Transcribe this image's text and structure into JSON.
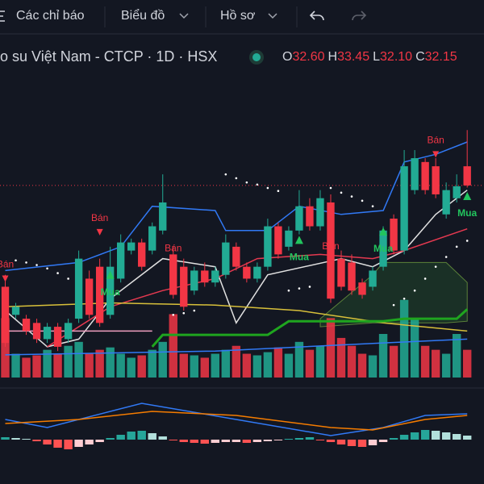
{
  "toolbar": {
    "items": [
      "Các chỉ báo",
      "Biểu đồ",
      "Hồ sơ"
    ]
  },
  "header": {
    "title": "o su Việt Nam - CTCP · 1D · HSX",
    "ohlc": [
      {
        "key": "O",
        "value": "32.60"
      },
      {
        "key": "H",
        "value": "33.45"
      },
      {
        "key": "L",
        "value": "32.10"
      },
      {
        "key": "C",
        "value": "32.15"
      }
    ]
  },
  "chart_data": {
    "type": "candlestick",
    "up_color": "#22ab94",
    "down_color": "#f23645",
    "xlim": [
      -0.5,
      45.6
    ],
    "ylim": [
      27.6,
      34.8
    ],
    "open": [
      29.77,
      29.11,
      29.02,
      28.92,
      28.54,
      28.83,
      28.54,
      29.02,
      29.96,
      30.24,
      29.11,
      29.96,
      30.62,
      30.81,
      30.62,
      31.09,
      30.53,
      30.24,
      29.68,
      30.15,
      29.87,
      30.05,
      30.71,
      30.24,
      29.96,
      30.24,
      31.19,
      30.71,
      31.09,
      31.66,
      31.19,
      31.75,
      30.43,
      30.34,
      29.87,
      29.77,
      30.24,
      31.37,
      30.62,
      32.04,
      32.7,
      32.6,
      31.47,
      31.85,
      32.6
    ],
    "high": [
      30.05,
      29.39,
      29.11,
      29.02,
      28.92,
      28.92,
      29.02,
      30.62,
      30.15,
      30.43,
      30.71,
      31.0,
      30.9,
      30.9,
      31.28,
      32.41,
      30.71,
      30.43,
      30.24,
      30.34,
      30.24,
      31.0,
      30.81,
      30.34,
      30.34,
      31.37,
      31.28,
      31.19,
      32.04,
      31.85,
      32.04,
      31.94,
      30.62,
      30.53,
      29.96,
      30.24,
      31.19,
      31.47,
      32.98,
      32.98,
      32.79,
      32.79,
      32.22,
      32.41,
      33.45
    ],
    "low": [
      28.36,
      29.02,
      28.64,
      28.45,
      28.45,
      28.26,
      28.45,
      28.92,
      29.02,
      28.83,
      29.02,
      29.87,
      30.53,
      30.15,
      30.53,
      31.0,
      29.49,
      29.21,
      29.58,
      29.77,
      29.77,
      29.96,
      30.15,
      29.87,
      29.87,
      30.15,
      30.43,
      30.62,
      31.0,
      31.09,
      31.09,
      29.39,
      29.68,
      29.58,
      29.49,
      29.68,
      30.15,
      30.53,
      30.53,
      31.94,
      31.94,
      31.85,
      31.37,
      31.75,
      32.1
    ],
    "close": [
      28.45,
      29.3,
      28.73,
      28.54,
      28.83,
      28.36,
      28.92,
      30.43,
      29.11,
      28.92,
      30.24,
      30.81,
      30.81,
      30.24,
      31.19,
      31.75,
      29.58,
      29.3,
      30.15,
      29.87,
      30.15,
      30.81,
      30.24,
      29.96,
      30.24,
      31.19,
      30.53,
      31.09,
      31.66,
      31.19,
      31.85,
      29.49,
      29.77,
      29.68,
      29.58,
      30.15,
      31.09,
      30.62,
      32.6,
      32.79,
      32.04,
      31.94,
      32.04,
      32.13,
      32.15
    ],
    "volume": {
      "lim": [
        0,
        110
      ],
      "values": [
        75,
        30,
        25,
        28,
        35,
        30,
        40,
        45,
        30,
        35,
        38,
        30,
        25,
        28,
        35,
        45,
        80,
        30,
        28,
        25,
        30,
        35,
        40,
        30,
        28,
        32,
        38,
        30,
        45,
        35,
        40,
        75,
        50,
        40,
        30,
        28,
        55,
        40,
        98,
        75,
        40,
        35,
        30,
        55,
        35
      ]
    },
    "cloud": {
      "color": "#2e7d32",
      "x": [
        30,
        35,
        36,
        42,
        44
      ],
      "upper": [
        29.02,
        30.05,
        30.34,
        30.34,
        29.87
      ],
      "lower": [
        28.83,
        28.92,
        28.92,
        28.92,
        28.96
      ]
    },
    "overlays": [
      {
        "color": "#3179f5",
        "width": 1.5,
        "x": [
          0,
          7,
          11,
          14,
          20,
          21,
          25,
          28,
          32,
          36,
          38,
          41,
          44
        ],
        "values": [
          30.15,
          30.34,
          30.71,
          31.66,
          31.56,
          31.09,
          31.09,
          31.66,
          31.47,
          31.56,
          32.7,
          32.88,
          33.17
        ]
      },
      {
        "color": "#3179f5",
        "width": 1.5,
        "x": [
          0,
          20,
          36,
          44
        ],
        "values": [
          28.17,
          28.26,
          28.45,
          28.54
        ]
      },
      {
        "color": "#e0e0e0",
        "width": 1.5,
        "x": [
          0,
          4,
          7,
          10,
          15,
          20,
          22,
          25,
          32,
          35,
          38,
          41,
          44
        ],
        "values": [
          29.21,
          28.36,
          28.54,
          29.49,
          30.43,
          30.24,
          28.92,
          30.05,
          30.43,
          30.24,
          30.62,
          31.47,
          32.04
        ]
      },
      {
        "color": "#e53950",
        "width": 1.5,
        "x": [
          4,
          10,
          15,
          20,
          24,
          30,
          35,
          38,
          44
        ],
        "values": [
          28.36,
          29.3,
          29.68,
          29.96,
          30.43,
          30.53,
          30.43,
          30.62,
          31.13
        ]
      },
      {
        "color": "#d8c03a",
        "width": 1.5,
        "x": [
          0,
          10,
          20,
          28,
          36,
          44
        ],
        "values": [
          29.3,
          29.39,
          29.34,
          29.21,
          28.92,
          28.73
        ]
      },
      {
        "color": "#1fa51f",
        "width": 3,
        "x": [
          14,
          15,
          25,
          27,
          36,
          38,
          43,
          44
        ],
        "values": [
          28.36,
          28.64,
          28.64,
          28.96,
          28.96,
          29.02,
          29.02,
          29.24
        ]
      },
      {
        "color": "#f0a0c0",
        "width": 1.5,
        "x": [
          0,
          14
        ],
        "values": [
          28.73,
          28.73
        ]
      }
    ],
    "sar": {
      "color": "#ffffff",
      "x": [
        1,
        2,
        3,
        4,
        5,
        6,
        16,
        17,
        18,
        21,
        22,
        23,
        24,
        25,
        26,
        27,
        28,
        29,
        31,
        32,
        33,
        34,
        35,
        37,
        38,
        39,
        40,
        41,
        42,
        43,
        44
      ],
      "values": [
        30.39,
        30.34,
        30.28,
        30.2,
        30.09,
        29.96,
        29.11,
        29.15,
        29.21,
        32.41,
        32.32,
        32.22,
        32.17,
        32.09,
        32.02,
        29.68,
        29.73,
        29.77,
        32.09,
        31.98,
        31.89,
        31.79,
        31.66,
        29.34,
        29.49,
        29.68,
        29.96,
        30.24,
        30.47,
        30.71,
        30.85
      ]
    },
    "sell_color": "#f23645",
    "buy_color": "#22c55e",
    "signals": [
      {
        "label": "Bán",
        "x": 0,
        "value": 29.96
      },
      {
        "label": "Bán",
        "x": 9,
        "value": 31.05
      },
      {
        "label": "Bán",
        "x": 16,
        "value": 30.34
      },
      {
        "label": "Bán",
        "x": 31,
        "value": 30.39
      },
      {
        "label": "Bán",
        "x": 41,
        "value": 32.88
      },
      {
        "label": "Mua",
        "x": 10,
        "value": 30.05
      },
      {
        "label": "Mua",
        "x": 28,
        "value": 30.87
      },
      {
        "label": "Mua",
        "x": 36,
        "value": 31.07
      },
      {
        "label": "Mua",
        "x": 44,
        "value": 31.9
      }
    ],
    "macd": {
      "lim": [
        -20,
        50
      ],
      "histogram": [
        3,
        2,
        1,
        -2,
        -6,
        -10,
        -12,
        -9,
        -6,
        -3,
        2,
        6,
        10,
        11,
        8,
        4,
        -1,
        -3,
        -4,
        -5,
        -4,
        -3,
        -3,
        -4,
        -3,
        -2,
        -1,
        1,
        2,
        3,
        -1,
        -3,
        -6,
        -8,
        -9,
        -7,
        -3,
        2,
        6,
        9,
        12,
        11,
        9,
        7,
        5
      ],
      "lines": [
        {
          "color": "#3179f5",
          "x": [
            0,
            4,
            13,
            22,
            31,
            36,
            40,
            44
          ],
          "values": [
            25,
            15,
            45,
            25,
            5,
            15,
            30,
            32
          ]
        },
        {
          "color": "#f57c00",
          "x": [
            0,
            7,
            14,
            22,
            31,
            35,
            40,
            44
          ],
          "values": [
            20,
            25,
            35,
            30,
            15,
            12,
            25,
            30
          ]
        }
      ]
    }
  }
}
